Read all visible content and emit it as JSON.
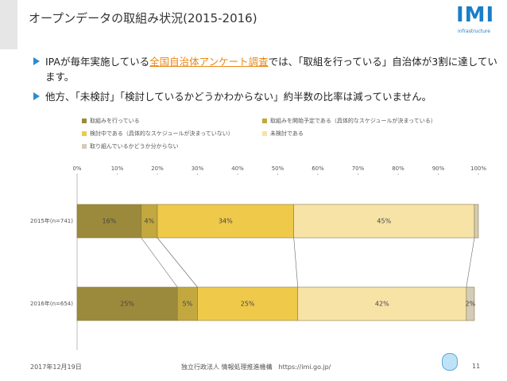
{
  "header": {
    "title": "オープンデータの取組み状況(2015-2016)",
    "logo": "IMI",
    "logo_sub": "infrastructure"
  },
  "bullets": [
    {
      "before": "IPAが毎年実施している",
      "link": "全国自治体アンケート調査",
      "after": "では、「取組を行っている」自治体が3割に達しています。"
    },
    {
      "before": "他方、「未検討」「検討しているかどうかわからない」約半数の比率は減っていません。"
    }
  ],
  "chart_data": {
    "type": "stacked_barh",
    "categories": [
      "2015年(n=741)",
      "2016年(n=654)"
    ],
    "series": [
      {
        "name": "取組みを行っている",
        "color": "#9c8a3c",
        "values": [
          16,
          25
        ],
        "value_labels": [
          "16%",
          "25%"
        ]
      },
      {
        "name": "取組みを開始予定である（具体的なスケジュールが決まっている）",
        "color": "#c2a83e",
        "values": [
          4,
          5
        ],
        "value_labels": [
          "4%",
          "5%"
        ]
      },
      {
        "name": "検討中である（具体的なスケジュールが決まっていない）",
        "color": "#efc94a",
        "values": [
          34,
          25
        ],
        "value_labels": [
          "34%",
          "25%"
        ]
      },
      {
        "name": "未検討である",
        "color": "#f7e3a6",
        "values": [
          45,
          42
        ],
        "value_labels": [
          "45%",
          "42%"
        ]
      },
      {
        "name": "取り組んでいるかどうか分からない",
        "color": "#d4cbb8",
        "values": [
          1,
          2
        ],
        "value_labels": [
          null,
          "2%"
        ]
      }
    ],
    "xlim": [
      0,
      100
    ],
    "xticks": [
      {
        "value": 0,
        "label": "0%"
      },
      {
        "value": 10,
        "label": "10%"
      },
      {
        "value": 20,
        "label": "20%"
      },
      {
        "value": 30,
        "label": "30%"
      },
      {
        "value": 40,
        "label": "40%"
      },
      {
        "value": 50,
        "label": "50%"
      },
      {
        "value": 60,
        "label": "60%"
      },
      {
        "value": 70,
        "label": "70%"
      },
      {
        "value": 80,
        "label": "80%"
      },
      {
        "value": 90,
        "label": "90%"
      },
      {
        "value": 100,
        "label": "100%"
      }
    ]
  },
  "footer": {
    "date": "2017年12月19日",
    "org": "独立行政法人 情報処理推進機構　https://imi.go.jp/",
    "page": "11"
  }
}
